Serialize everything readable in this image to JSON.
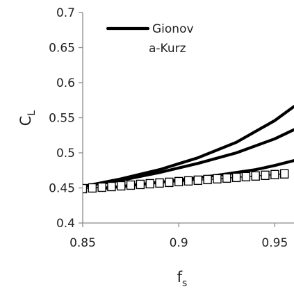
{
  "chart_data": {
    "type": "line",
    "title": "",
    "xlabel": "f",
    "xlabel_sub": "s",
    "ylabel": "C",
    "ylabel_sub": "L",
    "xlim": [
      0.85,
      0.96
    ],
    "ylim": [
      0.4,
      0.7
    ],
    "x_ticks": [
      "0.85",
      "0.9",
      "0.95"
    ],
    "y_ticks": [
      "0.4",
      "0.45",
      "0.5",
      "0.55",
      "0.6",
      "0.65",
      "0.7"
    ],
    "grid": false,
    "legend": {
      "position": "top-left",
      "entries": [
        "Gionov\na-Kurz"
      ]
    },
    "series": [
      {
        "name": "Gionova-Kurz",
        "style": "line",
        "x": [
          0.85,
          0.87,
          0.89,
          0.91,
          0.93,
          0.95,
          0.96
        ],
        "y": [
          0.452,
          0.463,
          0.476,
          0.493,
          0.515,
          0.546,
          0.566
        ]
      },
      {
        "style": "line",
        "x": [
          0.85,
          0.87,
          0.89,
          0.91,
          0.93,
          0.95,
          0.96
        ],
        "y": [
          0.452,
          0.461,
          0.472,
          0.485,
          0.5,
          0.52,
          0.533
        ]
      },
      {
        "style": "line",
        "x": [
          0.86,
          0.88,
          0.9,
          0.92,
          0.94,
          0.95,
          0.96
        ],
        "y": [
          0.449,
          0.455,
          0.461,
          0.468,
          0.476,
          0.482,
          0.489
        ]
      },
      {
        "style": "markers",
        "marker": "square",
        "x": [
          0.85,
          0.855,
          0.86,
          0.865,
          0.87,
          0.875,
          0.88,
          0.885,
          0.89,
          0.895,
          0.9,
          0.905,
          0.91,
          0.915,
          0.92,
          0.925,
          0.93,
          0.935,
          0.94,
          0.945,
          0.95,
          0.955
        ],
        "y": [
          0.449,
          0.45,
          0.451,
          0.452,
          0.453,
          0.454,
          0.455,
          0.456,
          0.457,
          0.458,
          0.459,
          0.46,
          0.461,
          0.462,
          0.463,
          0.464,
          0.465,
          0.466,
          0.467,
          0.468,
          0.469,
          0.47
        ]
      }
    ],
    "colors": {
      "line": "#000000",
      "axis": "#8a8a8a"
    }
  }
}
